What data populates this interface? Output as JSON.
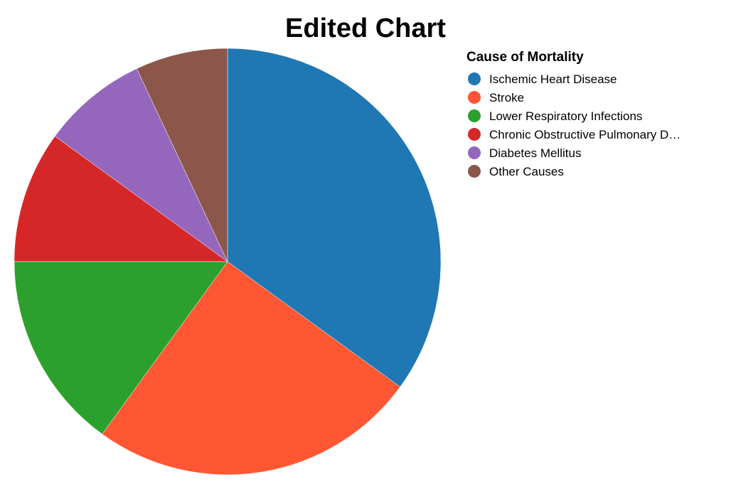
{
  "chart_data": {
    "type": "pie",
    "title": "Edited Chart",
    "legend_title": "Cause of Mortality",
    "legend_position": "right",
    "start_angle": "12 o'clock",
    "direction": "clockwise",
    "categories": [
      "Ischemic Heart Disease",
      "Stroke",
      "Lower Respiratory Infections",
      "Chronic Obstructive Pulmonary D…",
      "Diabetes Mellitus",
      "Other Causes"
    ],
    "values": [
      35,
      25,
      15,
      10,
      8,
      7
    ],
    "colors": [
      "#1f77b4",
      "#ff5733",
      "#2ca02c",
      "#d62728",
      "#9467bd",
      "#8c564b"
    ]
  }
}
